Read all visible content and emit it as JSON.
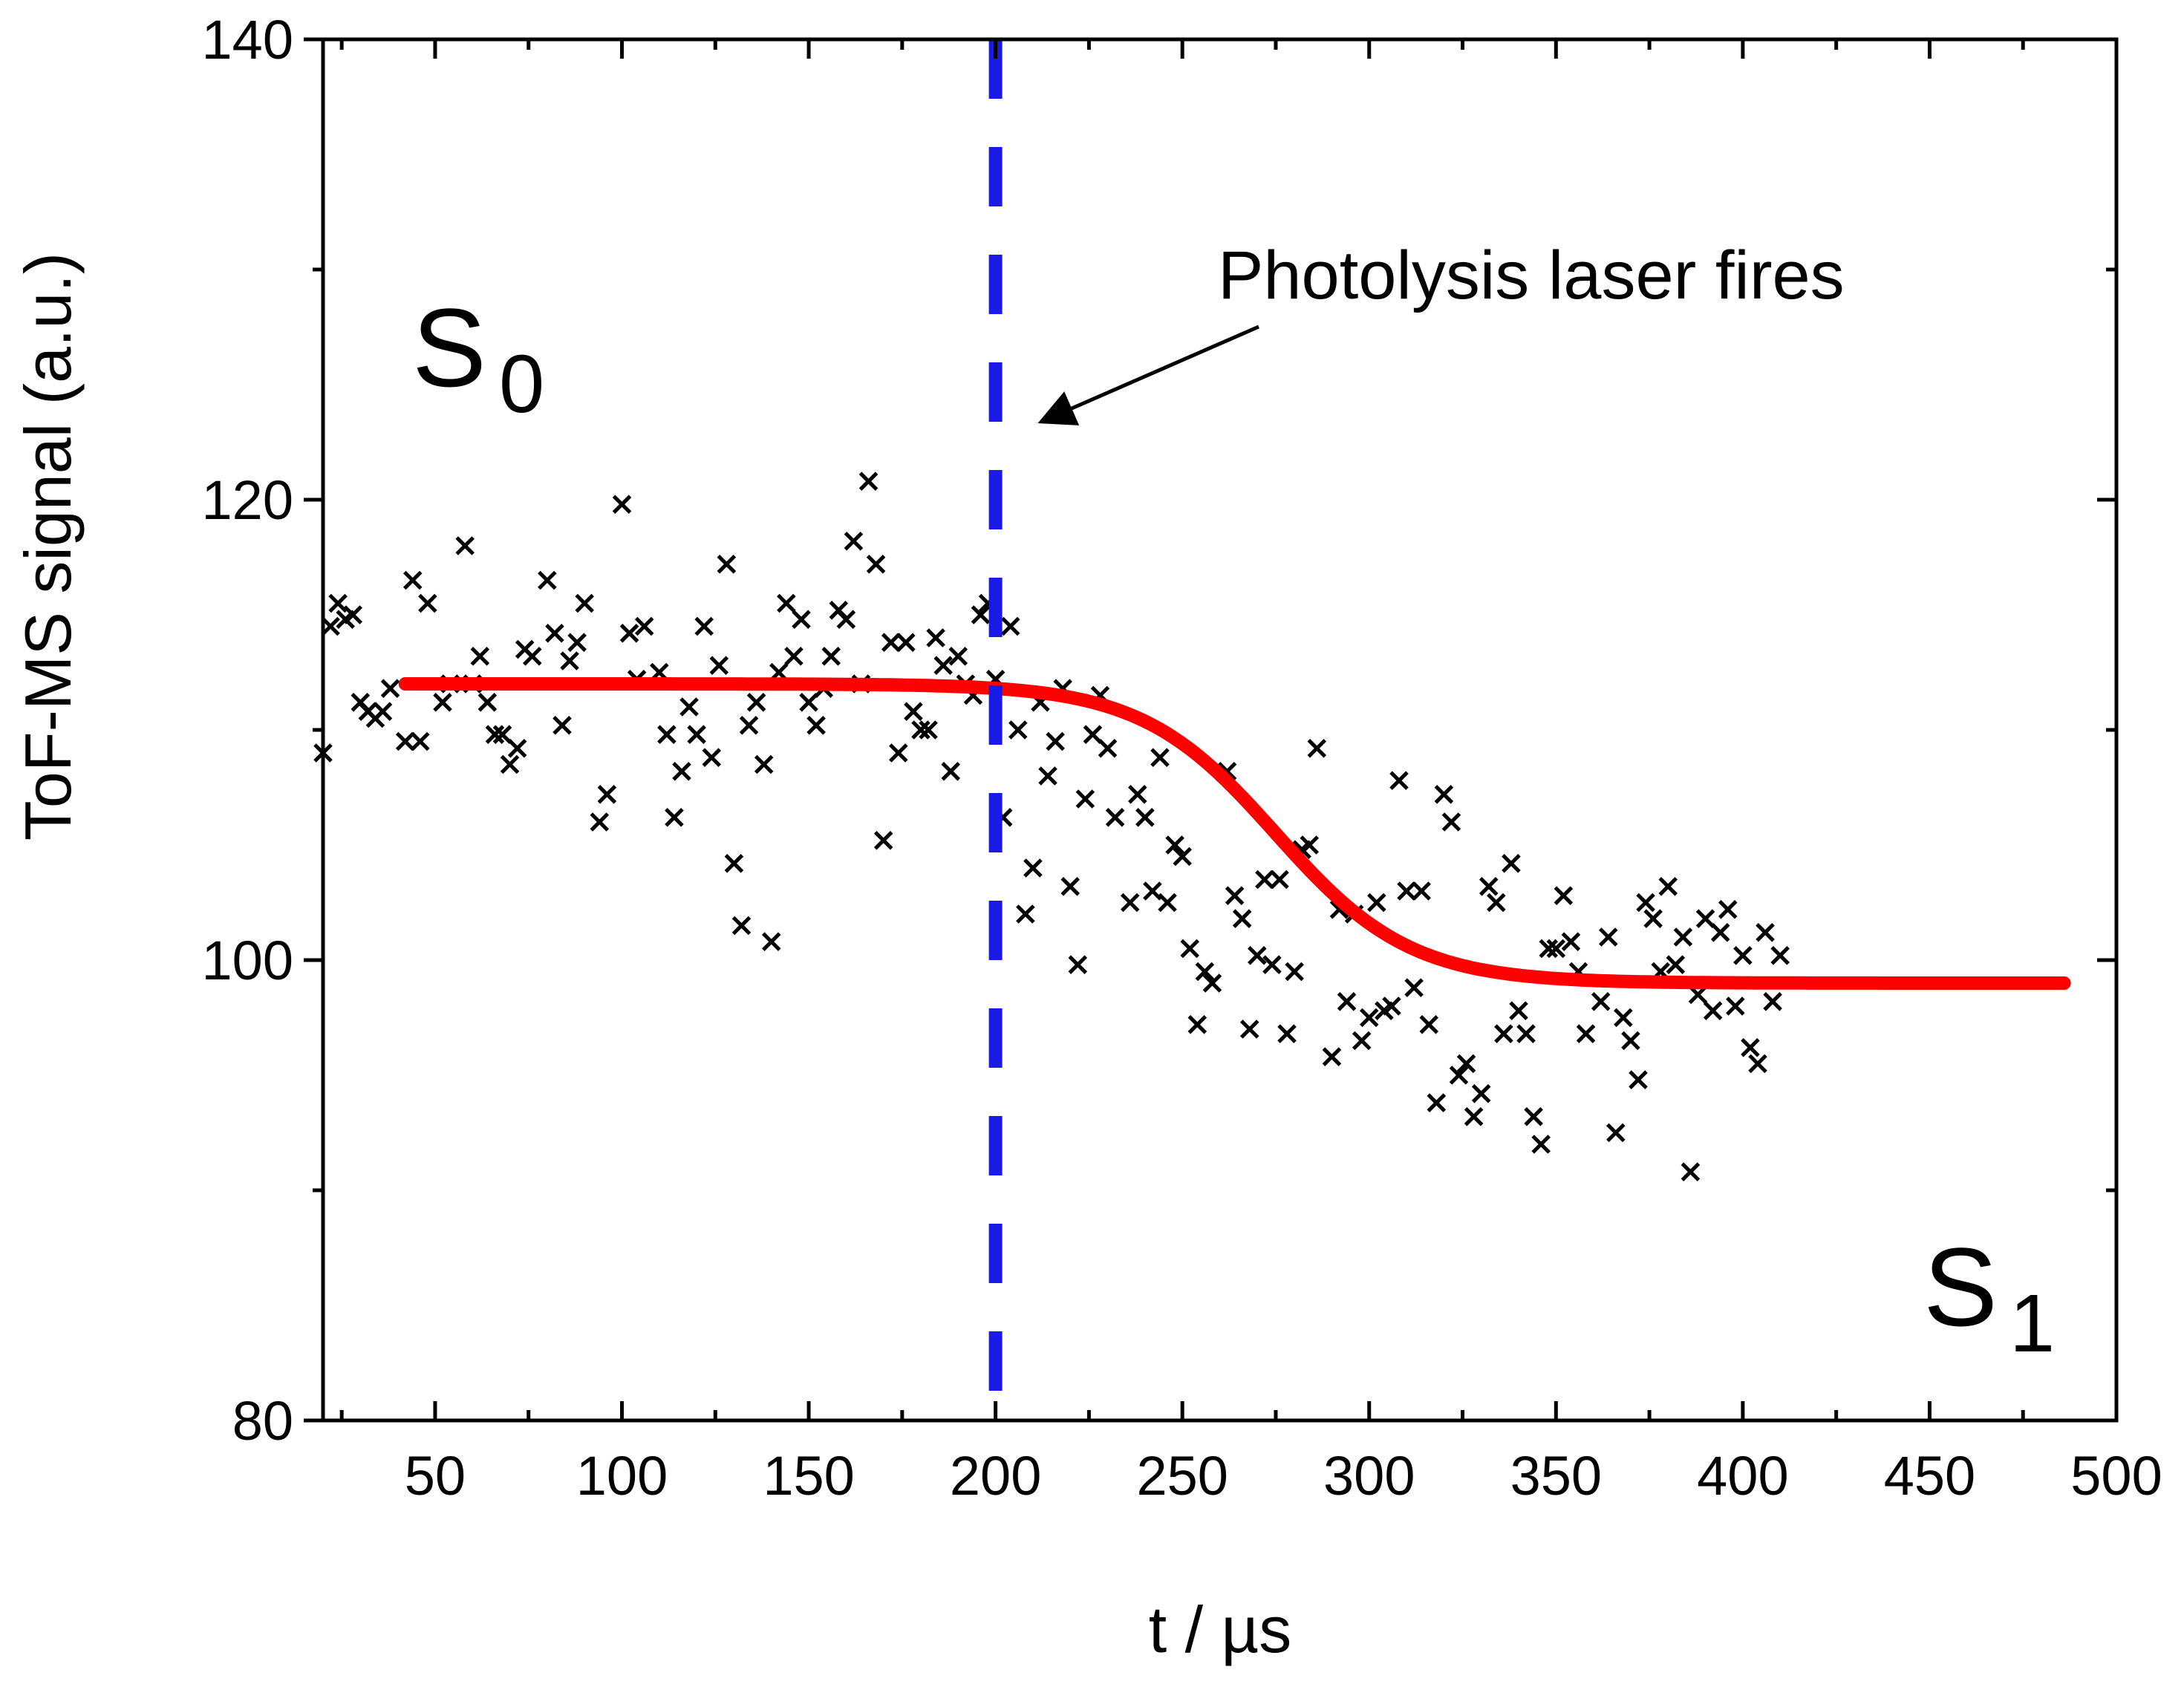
{
  "chart_data": {
    "type": "scatter",
    "xlabel": "t / µs",
    "ylabel": "ToF-MS signal (a.u.)",
    "xlim": [
      20,
      500
    ],
    "ylim": [
      80,
      140
    ],
    "xticks": [
      50,
      100,
      150,
      200,
      250,
      300,
      350,
      400,
      450,
      500
    ],
    "yticks": [
      80,
      100,
      120,
      140
    ],
    "grid": false,
    "annotations": {
      "laser_text": "Photolysis laser fires",
      "s0_main": "S",
      "s0_sub": "0",
      "s1_main": "S",
      "s1_sub": "1"
    },
    "vline": {
      "x": 200,
      "color": "#1a1ae6",
      "style": "dashed"
    },
    "fit_curve": {
      "color": "#ff0000",
      "x_range": [
        42,
        486
      ],
      "upper": 112,
      "lower": 99,
      "midpoint": 275,
      "width": 18
    },
    "series": [
      {
        "marker": "x",
        "color": "#000000",
        "points": [
          [
            20,
            109
          ],
          [
            22,
            114.5
          ],
          [
            24,
            115.5
          ],
          [
            26,
            114.8
          ],
          [
            28,
            115
          ],
          [
            30,
            111.2
          ],
          [
            32,
            110.8
          ],
          [
            34,
            110.5
          ],
          [
            36,
            110.8
          ],
          [
            38,
            111.8
          ],
          [
            42,
            109.5
          ],
          [
            44,
            116.5
          ],
          [
            46,
            109.5
          ],
          [
            48,
            115.5
          ],
          [
            52,
            111.2
          ],
          [
            54,
            112
          ],
          [
            58,
            118
          ],
          [
            60,
            112
          ],
          [
            62,
            113.2
          ],
          [
            64,
            111.2
          ],
          [
            66,
            109.8
          ],
          [
            68,
            109.8
          ],
          [
            70,
            108.5
          ],
          [
            72,
            109.2
          ],
          [
            74,
            113.5
          ],
          [
            76,
            113.2
          ],
          [
            80,
            116.5
          ],
          [
            82,
            114.2
          ],
          [
            84,
            110.2
          ],
          [
            86,
            113
          ],
          [
            88,
            113.8
          ],
          [
            90,
            115.5
          ],
          [
            94,
            106
          ],
          [
            96,
            107.2
          ],
          [
            100,
            119.8
          ],
          [
            102,
            114.2
          ],
          [
            104,
            112.2
          ],
          [
            106,
            114.5
          ],
          [
            110,
            112.5
          ],
          [
            112,
            109.8
          ],
          [
            114,
            106.2
          ],
          [
            116,
            108.2
          ],
          [
            118,
            111
          ],
          [
            120,
            109.8
          ],
          [
            122,
            114.5
          ],
          [
            124,
            108.8
          ],
          [
            126,
            112.8
          ],
          [
            128,
            117.2
          ],
          [
            130,
            104.2
          ],
          [
            132,
            101.5
          ],
          [
            134,
            110.2
          ],
          [
            136,
            111.2
          ],
          [
            138,
            108.5
          ],
          [
            140,
            100.8
          ],
          [
            142,
            112.5
          ],
          [
            144,
            115.5
          ],
          [
            146,
            113.2
          ],
          [
            148,
            114.8
          ],
          [
            150,
            111.2
          ],
          [
            152,
            110.2
          ],
          [
            154,
            111.8
          ],
          [
            156,
            113.2
          ],
          [
            158,
            115.2
          ],
          [
            160,
            114.8
          ],
          [
            162,
            118.2
          ],
          [
            164,
            112
          ],
          [
            166,
            120.8
          ],
          [
            168,
            117.2
          ],
          [
            170,
            105.2
          ],
          [
            172,
            113.8
          ],
          [
            174,
            109
          ],
          [
            176,
            113.8
          ],
          [
            178,
            110.8
          ],
          [
            180,
            110
          ],
          [
            182,
            110
          ],
          [
            184,
            114
          ],
          [
            186,
            112.8
          ],
          [
            188,
            108.2
          ],
          [
            190,
            113.2
          ],
          [
            192,
            112
          ],
          [
            194,
            111.5
          ],
          [
            196,
            115
          ],
          [
            198,
            115.5
          ],
          [
            200,
            112.2
          ],
          [
            202,
            106.2
          ],
          [
            204,
            114.5
          ],
          [
            206,
            110
          ],
          [
            208,
            102
          ],
          [
            210,
            104
          ],
          [
            212,
            111.2
          ],
          [
            214,
            108
          ],
          [
            216,
            109.5
          ],
          [
            218,
            111.8
          ],
          [
            220,
            103.2
          ],
          [
            222,
            99.8
          ],
          [
            224,
            107
          ],
          [
            226,
            109.8
          ],
          [
            228,
            111.5
          ],
          [
            230,
            109.2
          ],
          [
            232,
            106.2
          ],
          [
            236,
            102.5
          ],
          [
            238,
            107.2
          ],
          [
            240,
            106.2
          ],
          [
            242,
            103
          ],
          [
            244,
            108.8
          ],
          [
            246,
            102.5
          ],
          [
            248,
            105
          ],
          [
            250,
            104.5
          ],
          [
            252,
            100.5
          ],
          [
            254,
            97.2
          ],
          [
            256,
            99.5
          ],
          [
            258,
            99
          ],
          [
            262,
            108.2
          ],
          [
            264,
            102.8
          ],
          [
            266,
            101.8
          ],
          [
            268,
            97
          ],
          [
            270,
            100.2
          ],
          [
            272,
            103.5
          ],
          [
            274,
            99.8
          ],
          [
            276,
            103.5
          ],
          [
            278,
            96.8
          ],
          [
            280,
            99.5
          ],
          [
            282,
            104.8
          ],
          [
            284,
            105
          ],
          [
            286,
            109.2
          ],
          [
            290,
            95.8
          ],
          [
            292,
            102.2
          ],
          [
            294,
            98.2
          ],
          [
            296,
            102
          ],
          [
            298,
            96.5
          ],
          [
            300,
            97.5
          ],
          [
            302,
            102.5
          ],
          [
            304,
            97.8
          ],
          [
            306,
            98
          ],
          [
            308,
            107.8
          ],
          [
            310,
            103
          ],
          [
            312,
            98.8
          ],
          [
            314,
            103
          ],
          [
            316,
            97.2
          ],
          [
            318,
            93.8
          ],
          [
            320,
            107.2
          ],
          [
            322,
            106
          ],
          [
            324,
            95
          ],
          [
            326,
            95.5
          ],
          [
            328,
            93.2
          ],
          [
            330,
            94.2
          ],
          [
            332,
            103.2
          ],
          [
            334,
            102.5
          ],
          [
            336,
            96.8
          ],
          [
            338,
            104.2
          ],
          [
            340,
            97.8
          ],
          [
            342,
            96.8
          ],
          [
            344,
            93.2
          ],
          [
            346,
            92
          ],
          [
            348,
            100.5
          ],
          [
            350,
            100.5
          ],
          [
            352,
            102.8
          ],
          [
            354,
            100.8
          ],
          [
            356,
            99.5
          ],
          [
            358,
            96.8
          ],
          [
            362,
            98.2
          ],
          [
            364,
            101
          ],
          [
            366,
            92.5
          ],
          [
            368,
            97.5
          ],
          [
            370,
            96.5
          ],
          [
            372,
            94.8
          ],
          [
            374,
            102.5
          ],
          [
            376,
            101.8
          ],
          [
            378,
            99.5
          ],
          [
            380,
            103.2
          ],
          [
            382,
            99.8
          ],
          [
            384,
            101
          ],
          [
            386,
            90.8
          ],
          [
            388,
            98.5
          ],
          [
            390,
            101.8
          ],
          [
            392,
            97.8
          ],
          [
            394,
            101.2
          ],
          [
            396,
            102.2
          ],
          [
            398,
            98
          ],
          [
            400,
            100.2
          ],
          [
            402,
            96.2
          ],
          [
            404,
            95.5
          ],
          [
            406,
            101.2
          ],
          [
            408,
            98.2
          ],
          [
            410,
            100.2
          ]
        ]
      }
    ]
  }
}
